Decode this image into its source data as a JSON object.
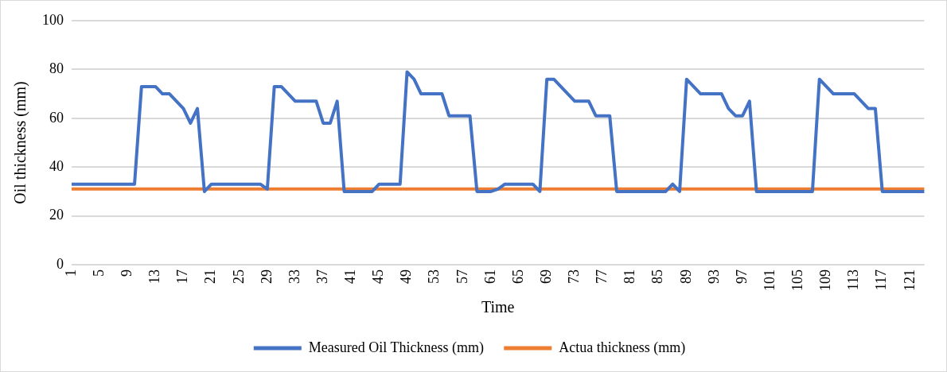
{
  "chart_data": {
    "type": "line",
    "xlabel": "Time",
    "ylabel": "Oil thickness (mm)",
    "categories": [
      "1",
      null,
      null,
      null,
      "5",
      null,
      null,
      null,
      "9",
      null,
      null,
      null,
      "13",
      null,
      null,
      null,
      "17",
      null,
      null,
      null,
      "21",
      null,
      null,
      null,
      "25",
      null,
      null,
      null,
      "29",
      null,
      null,
      null,
      "33",
      null,
      null,
      null,
      "37",
      null,
      null,
      null,
      "41",
      null,
      null,
      null,
      "45",
      null,
      null,
      null,
      "49",
      null,
      null,
      null,
      "53",
      null,
      null,
      null,
      "57",
      null,
      null,
      null,
      "61",
      null,
      null,
      null,
      "65",
      null,
      null,
      null,
      "69",
      null,
      null,
      null,
      "73",
      null,
      null,
      null,
      "77",
      null,
      null,
      null,
      "81",
      null,
      null,
      null,
      "85",
      null,
      null,
      null,
      "89",
      null,
      null,
      null,
      "93",
      null,
      null,
      null,
      "97",
      null,
      null,
      null,
      "101",
      null,
      null,
      null,
      "105",
      null,
      null,
      null,
      "109",
      null,
      null,
      null,
      "113",
      null,
      null,
      null,
      "117",
      null,
      null,
      null,
      "121",
      null,
      null
    ],
    "series": [
      {
        "name": "Measured Oil Thickness (mm)",
        "color": "#4472c4",
        "values": [
          33,
          33,
          33,
          33,
          33,
          33,
          33,
          33,
          33,
          33,
          73,
          73,
          73,
          70,
          70,
          67,
          64,
          58,
          64,
          30,
          33,
          33,
          33,
          33,
          33,
          33,
          33,
          33,
          31,
          73,
          73,
          70,
          67,
          67,
          67,
          67,
          58,
          58,
          67,
          30,
          30,
          30,
          30,
          30,
          33,
          33,
          33,
          33,
          79,
          76,
          70,
          70,
          70,
          70,
          61,
          61,
          61,
          61,
          30,
          30,
          30,
          31,
          33,
          33,
          33,
          33,
          33,
          30,
          76,
          76,
          73,
          70,
          67,
          67,
          67,
          61,
          61,
          61,
          30,
          30,
          30,
          30,
          30,
          30,
          30,
          30,
          33,
          30,
          76,
          73,
          70,
          70,
          70,
          70,
          64,
          61,
          61,
          67,
          30,
          30,
          30,
          30,
          30,
          30,
          30,
          30,
          30,
          76,
          73,
          70,
          70,
          70,
          70,
          67,
          64,
          64,
          30,
          30,
          30,
          30,
          30,
          30,
          30
        ]
      },
      {
        "name": "Actua thickness (mm)",
        "color": "#ed7d31",
        "values": [
          31,
          31,
          31,
          31,
          31,
          31,
          31,
          31,
          31,
          31,
          31,
          31,
          31,
          31,
          31,
          31,
          31,
          31,
          31,
          31,
          31,
          31,
          31,
          31,
          31,
          31,
          31,
          31,
          31,
          31,
          31,
          31,
          31,
          31,
          31,
          31,
          31,
          31,
          31,
          31,
          31,
          31,
          31,
          31,
          31,
          31,
          31,
          31,
          31,
          31,
          31,
          31,
          31,
          31,
          31,
          31,
          31,
          31,
          31,
          31,
          31,
          31,
          31,
          31,
          31,
          31,
          31,
          31,
          31,
          31,
          31,
          31,
          31,
          31,
          31,
          31,
          31,
          31,
          31,
          31,
          31,
          31,
          31,
          31,
          31,
          31,
          31,
          31,
          31,
          31,
          31,
          31,
          31,
          31,
          31,
          31,
          31,
          31,
          31,
          31,
          31,
          31,
          31,
          31,
          31,
          31,
          31,
          31,
          31,
          31,
          31,
          31,
          31,
          31,
          31,
          31,
          31,
          31,
          31,
          31,
          31,
          31,
          31
        ]
      }
    ],
    "ylim": [
      0,
      100
    ],
    "yticks": [
      0,
      20,
      40,
      60,
      80,
      100
    ],
    "grid": "y",
    "legend": "bottom",
    "marker": "none",
    "line_style": "solid"
  }
}
